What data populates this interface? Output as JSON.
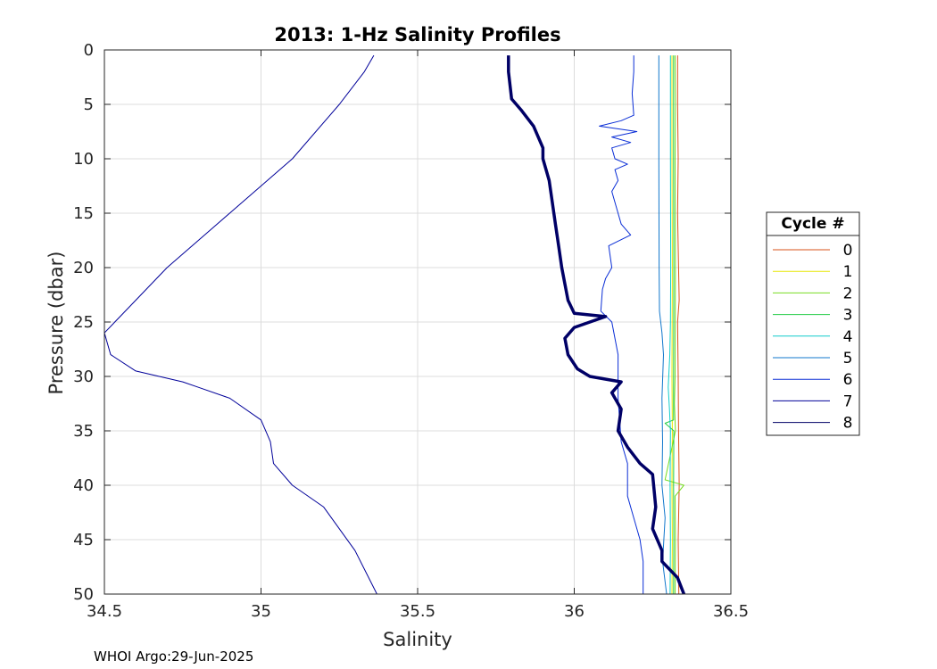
{
  "footer_text": "WHOI Argo:29-Jun-2025",
  "chart_data": {
    "type": "line",
    "title": "2013: 1-Hz Salinity Profiles",
    "xlabel": "Salinity",
    "ylabel": "Pressure (dbar)",
    "xlim": [
      34.5,
      36.5
    ],
    "ylim": [
      0,
      50
    ],
    "y_reversed": true,
    "xticks": [
      34.5,
      35,
      35.5,
      36,
      36.5
    ],
    "xtick_labels": [
      "34.5",
      "35",
      "35.5",
      "36",
      "36.5"
    ],
    "yticks": [
      0,
      5,
      10,
      15,
      20,
      25,
      30,
      35,
      40,
      45,
      50
    ],
    "ytick_labels": [
      "0",
      "5",
      "10",
      "15",
      "20",
      "25",
      "30",
      "35",
      "40",
      "45",
      "50"
    ],
    "grid": true,
    "legend": {
      "title": "Cycle #",
      "placement": "right"
    },
    "series": [
      {
        "name": "0",
        "color": "#d95319",
        "width": 1,
        "points": [
          [
            36.33,
            0.5
          ],
          [
            36.33,
            5
          ],
          [
            36.332,
            10
          ],
          [
            36.33,
            15
          ],
          [
            36.333,
            20
          ],
          [
            36.335,
            23
          ],
          [
            36.33,
            25
          ],
          [
            36.332,
            30
          ],
          [
            36.333,
            35
          ],
          [
            36.335,
            40
          ],
          [
            36.332,
            45
          ],
          [
            36.334,
            50
          ]
        ]
      },
      {
        "name": "1",
        "color": "#e6e600",
        "width": 1,
        "points": [
          [
            36.312,
            0.5
          ],
          [
            36.312,
            10
          ],
          [
            36.313,
            20
          ],
          [
            36.312,
            30
          ],
          [
            36.313,
            35
          ],
          [
            36.312,
            40
          ],
          [
            36.313,
            45
          ],
          [
            36.312,
            50
          ]
        ]
      },
      {
        "name": "2",
        "color": "#77dd22",
        "width": 1,
        "points": [
          [
            36.322,
            0.5
          ],
          [
            36.323,
            5
          ],
          [
            36.322,
            10
          ],
          [
            36.323,
            20
          ],
          [
            36.322,
            30
          ],
          [
            36.32,
            32.5
          ],
          [
            36.323,
            35
          ],
          [
            36.29,
            39.5
          ],
          [
            36.35,
            40
          ],
          [
            36.322,
            41
          ],
          [
            36.323,
            45
          ],
          [
            36.322,
            50
          ]
        ]
      },
      {
        "name": "3",
        "color": "#22cc44",
        "width": 1,
        "points": [
          [
            36.317,
            0.5
          ],
          [
            36.317,
            10
          ],
          [
            36.318,
            20
          ],
          [
            36.317,
            30
          ],
          [
            36.317,
            34
          ],
          [
            36.29,
            34.3
          ],
          [
            36.318,
            35
          ],
          [
            36.317,
            40
          ],
          [
            36.318,
            45
          ],
          [
            36.317,
            50
          ]
        ]
      },
      {
        "name": "4",
        "color": "#11cccc",
        "width": 1,
        "points": [
          [
            36.307,
            0.5
          ],
          [
            36.307,
            10
          ],
          [
            36.308,
            20
          ],
          [
            36.307,
            25
          ],
          [
            36.305,
            28
          ],
          [
            36.3,
            31
          ],
          [
            36.304,
            33
          ],
          [
            36.307,
            35
          ],
          [
            36.306,
            40
          ],
          [
            36.307,
            45
          ],
          [
            36.306,
            50
          ]
        ]
      },
      {
        "name": "5",
        "color": "#1177cc",
        "width": 1,
        "points": [
          [
            36.27,
            0.5
          ],
          [
            36.27,
            10
          ],
          [
            36.271,
            20
          ],
          [
            36.272,
            24
          ],
          [
            36.28,
            26
          ],
          [
            36.285,
            28
          ],
          [
            36.28,
            32
          ],
          [
            36.282,
            36
          ],
          [
            36.28,
            40
          ],
          [
            36.29,
            43
          ],
          [
            36.282,
            47
          ],
          [
            36.295,
            50
          ]
        ]
      },
      {
        "name": "6",
        "color": "#0a2ed6",
        "width": 1,
        "points": [
          [
            36.19,
            0.5
          ],
          [
            36.19,
            2
          ],
          [
            36.185,
            4
          ],
          [
            36.19,
            6
          ],
          [
            36.15,
            6.5
          ],
          [
            36.08,
            7
          ],
          [
            36.2,
            7.5
          ],
          [
            36.12,
            8
          ],
          [
            36.18,
            8.5
          ],
          [
            36.12,
            9
          ],
          [
            36.13,
            10
          ],
          [
            36.17,
            10.5
          ],
          [
            36.13,
            11
          ],
          [
            36.14,
            12
          ],
          [
            36.12,
            13
          ],
          [
            36.14,
            15
          ],
          [
            36.15,
            16
          ],
          [
            36.18,
            17
          ],
          [
            36.11,
            18
          ],
          [
            36.12,
            20
          ],
          [
            36.1,
            21
          ],
          [
            36.09,
            22
          ],
          [
            36.085,
            24
          ],
          [
            36.12,
            25
          ],
          [
            36.14,
            28
          ],
          [
            36.14,
            32
          ],
          [
            36.15,
            36
          ],
          [
            36.17,
            38
          ],
          [
            36.17,
            41
          ],
          [
            36.19,
            43
          ],
          [
            36.21,
            45
          ],
          [
            36.22,
            47
          ],
          [
            36.22,
            50
          ]
        ]
      },
      {
        "name": "7",
        "color": "#000099",
        "width": 1,
        "points": [
          [
            35.36,
            0.5
          ],
          [
            35.33,
            2
          ],
          [
            35.25,
            5
          ],
          [
            35.1,
            10
          ],
          [
            34.9,
            15
          ],
          [
            34.7,
            20
          ],
          [
            34.6,
            23
          ],
          [
            34.5,
            26
          ],
          [
            34.52,
            28
          ],
          [
            34.6,
            29.5
          ],
          [
            34.75,
            30.5
          ],
          [
            34.8,
            31
          ],
          [
            34.9,
            32
          ],
          [
            35.0,
            34
          ],
          [
            35.03,
            36
          ],
          [
            35.04,
            38
          ],
          [
            35.1,
            40
          ],
          [
            35.2,
            42
          ],
          [
            35.3,
            46
          ],
          [
            35.37,
            50
          ]
        ]
      },
      {
        "name": "8",
        "color": "#000066",
        "width": 3.5,
        "points": [
          [
            35.79,
            0.5
          ],
          [
            35.79,
            2
          ],
          [
            35.8,
            4.5
          ],
          [
            35.83,
            5.5
          ],
          [
            35.87,
            7
          ],
          [
            35.9,
            9
          ],
          [
            35.9,
            10
          ],
          [
            35.92,
            12
          ],
          [
            35.93,
            14
          ],
          [
            35.94,
            16
          ],
          [
            35.95,
            18
          ],
          [
            35.96,
            20
          ],
          [
            35.97,
            21.5
          ],
          [
            35.98,
            23
          ],
          [
            36.0,
            24.2
          ],
          [
            36.1,
            24.5
          ],
          [
            36.0,
            25.5
          ],
          [
            35.97,
            26.5
          ],
          [
            35.98,
            28
          ],
          [
            36.01,
            29.3
          ],
          [
            36.05,
            30
          ],
          [
            36.15,
            30.5
          ],
          [
            36.12,
            31.5
          ],
          [
            36.15,
            33
          ],
          [
            36.14,
            35
          ],
          [
            36.17,
            36.5
          ],
          [
            36.21,
            38
          ],
          [
            36.25,
            39
          ],
          [
            36.26,
            42
          ],
          [
            36.25,
            44
          ],
          [
            36.28,
            46
          ],
          [
            36.28,
            47
          ],
          [
            36.33,
            48.5
          ],
          [
            36.35,
            50
          ]
        ]
      }
    ]
  }
}
